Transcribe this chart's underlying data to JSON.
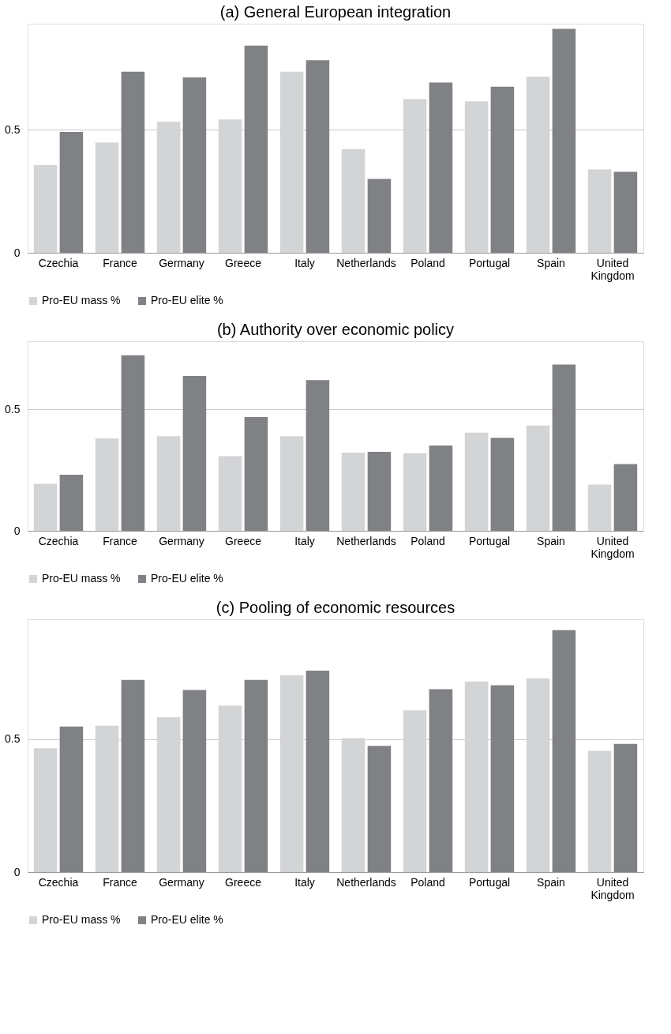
{
  "chart_data": [
    {
      "type": "bar",
      "title": "(a) General European integration",
      "categories": [
        "Czechia",
        "France",
        "Germany",
        "Greece",
        "Italy",
        "Netherlands",
        "Poland",
        "Portugal",
        "Spain",
        "United Kingdom"
      ],
      "series": [
        {
          "name": "Pro-EU mass %",
          "color": "#d3d4d6",
          "values": [
            0.356,
            0.447,
            0.532,
            0.541,
            0.735,
            0.421,
            0.624,
            0.615,
            0.715,
            0.338
          ]
        },
        {
          "name": "Pro-EU elite %",
          "color": "#808184",
          "values": [
            0.491,
            0.735,
            0.712,
            0.841,
            0.782,
            0.3,
            0.691,
            0.674,
            0.909,
            0.329
          ]
        }
      ],
      "ylim": [
        0,
        0.93
      ],
      "yticks": [
        0,
        0.5
      ],
      "grid": "y",
      "legend": "bottom"
    },
    {
      "type": "bar",
      "title": "(b) Authority over economic policy",
      "categories": [
        "Czechia",
        "France",
        "Germany",
        "Greece",
        "Italy",
        "Netherlands",
        "Poland",
        "Portugal",
        "Spain",
        "United Kingdom"
      ],
      "series": [
        {
          "name": "Pro-EU mass %",
          "color": "#d3d4d6",
          "values": [
            0.193,
            0.38,
            0.389,
            0.307,
            0.389,
            0.322,
            0.319,
            0.404,
            0.433,
            0.19
          ]
        },
        {
          "name": "Pro-EU elite %",
          "color": "#808184",
          "values": [
            0.231,
            0.722,
            0.637,
            0.468,
            0.62,
            0.325,
            0.351,
            0.383,
            0.684,
            0.275
          ]
        }
      ],
      "ylim": [
        0,
        0.78
      ],
      "yticks": [
        0,
        0.5
      ],
      "grid": "y",
      "legend": "bottom"
    },
    {
      "type": "bar",
      "title": "(c) Pooling of economic resources",
      "categories": [
        "Czechia",
        "France",
        "Germany",
        "Greece",
        "Italy",
        "Netherlands",
        "Poland",
        "Portugal",
        "Spain",
        "United Kingdom"
      ],
      "series": [
        {
          "name": "Pro-EU mass %",
          "color": "#d3d4d6",
          "values": [
            0.465,
            0.55,
            0.582,
            0.626,
            0.74,
            0.503,
            0.608,
            0.716,
            0.728,
            0.456
          ]
        },
        {
          "name": "Pro-EU elite %",
          "color": "#808184",
          "values": [
            0.547,
            0.722,
            0.684,
            0.722,
            0.757,
            0.474,
            0.687,
            0.702,
            0.909,
            0.482
          ]
        }
      ],
      "ylim": [
        0,
        0.95
      ],
      "yticks": [
        0,
        0.5
      ],
      "grid": "y",
      "legend": "bottom"
    }
  ]
}
